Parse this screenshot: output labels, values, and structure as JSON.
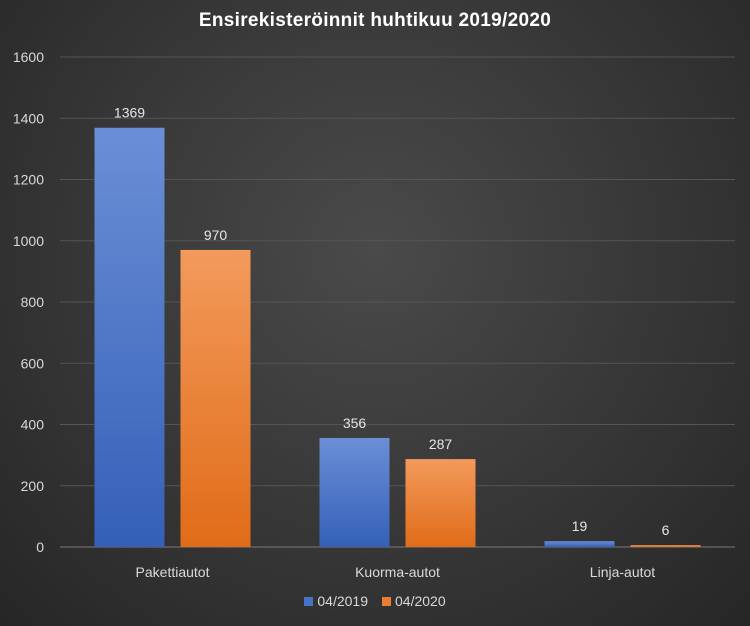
{
  "chart_data": {
    "type": "bar",
    "title": "Ensirekisteröinnit huhtikuu 2019/2020",
    "xlabel": "",
    "ylabel": "",
    "categories": [
      "Pakettiautot",
      "Kuorma-autot",
      "Linja-autot"
    ],
    "series": [
      {
        "name": "04/2019",
        "values": [
          1369,
          356,
          19
        ],
        "color": "#4472c4"
      },
      {
        "name": "04/2020",
        "values": [
          970,
          287,
          6
        ],
        "color": "#ed7d31"
      }
    ],
    "ylim": [
      0,
      1600
    ],
    "yticks": [
      0,
      200,
      400,
      600,
      800,
      1000,
      1200,
      1400,
      1600
    ],
    "grid": true,
    "legend": "bottom",
    "data_labels": true
  }
}
